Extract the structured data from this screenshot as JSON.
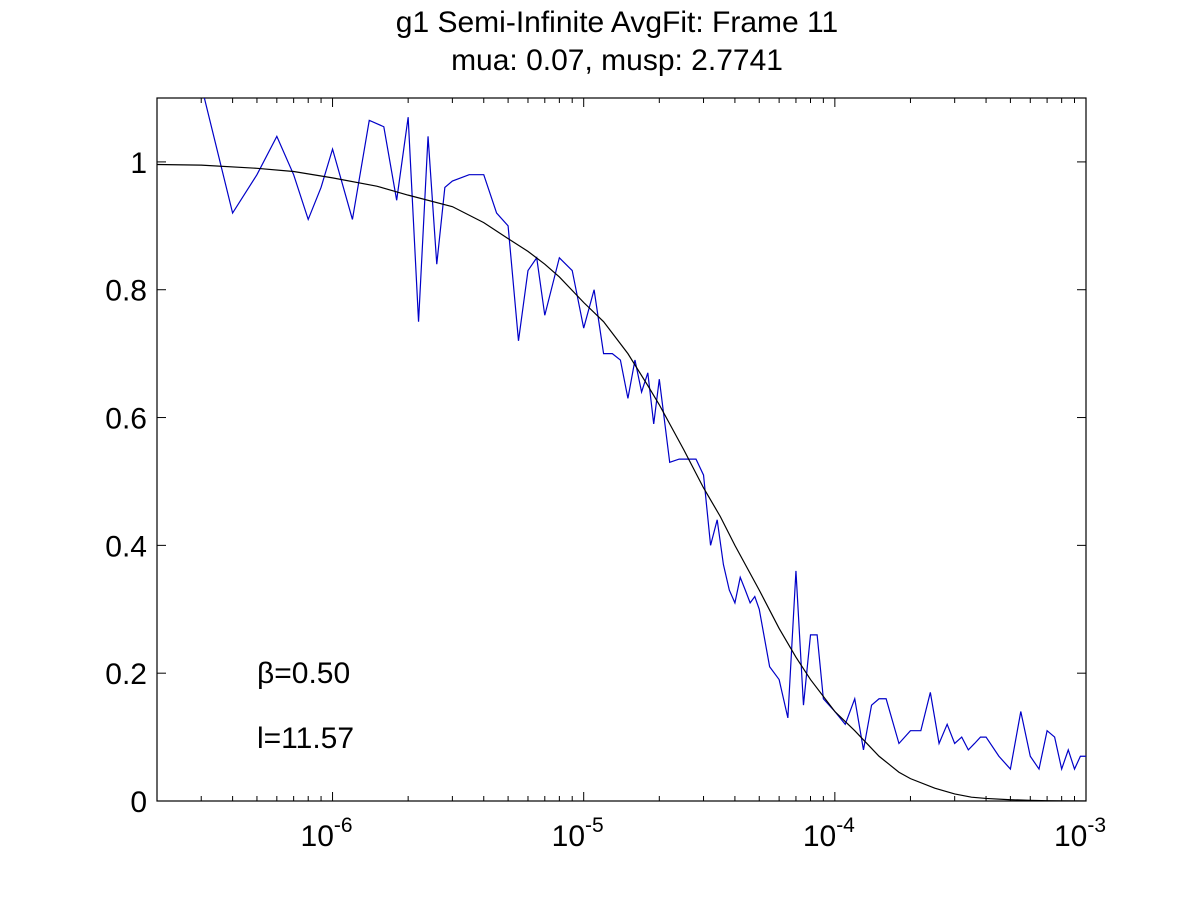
{
  "chart_data": {
    "type": "line",
    "title": "g1 Semi-Infinite AvgFit: Frame 11",
    "subtitle": "mua: 0.07, musp: 2.7741",
    "xlabel": "",
    "ylabel": "",
    "x_scale": "log",
    "xlim": [
      2e-07,
      0.001
    ],
    "ylim": [
      0,
      1.1
    ],
    "grid": false,
    "y_ticks": [
      {
        "value": 0,
        "label": "0"
      },
      {
        "value": 0.2,
        "label": "0.2"
      },
      {
        "value": 0.4,
        "label": "0.4"
      },
      {
        "value": 0.6,
        "label": "0.6"
      },
      {
        "value": 0.8,
        "label": "0.8"
      },
      {
        "value": 1,
        "label": "1"
      }
    ],
    "x_ticks": [
      {
        "value": 1e-06,
        "base": "10",
        "exp": "-6"
      },
      {
        "value": 1e-05,
        "base": "10",
        "exp": "-5"
      },
      {
        "value": 0.0001,
        "base": "10",
        "exp": "-4"
      },
      {
        "value": 0.001,
        "base": "10",
        "exp": "-3"
      }
    ],
    "annotations": [
      {
        "id": "beta",
        "text": "β=0.50"
      },
      {
        "id": "l",
        "text": "l=11.57"
      }
    ],
    "series": [
      {
        "color": "#0000c8",
        "x": [
          3e-07,
          4e-07,
          5e-07,
          6e-07,
          7e-07,
          8e-07,
          9e-07,
          1e-06,
          1.2e-06,
          1.4e-06,
          1.6e-06,
          1.8e-06,
          2e-06,
          2.2e-06,
          2.4e-06,
          2.6e-06,
          2.8e-06,
          3e-06,
          3.5e-06,
          4e-06,
          4.5e-06,
          5e-06,
          5.5e-06,
          6e-06,
          6.5e-06,
          7e-06,
          8e-06,
          9e-06,
          1e-05,
          1.1e-05,
          1.2e-05,
          1.3e-05,
          1.4e-05,
          1.5e-05,
          1.6e-05,
          1.7e-05,
          1.8e-05,
          1.9e-05,
          2e-05,
          2.2e-05,
          2.4e-05,
          2.6e-05,
          2.8e-05,
          3e-05,
          3.2e-05,
          3.4e-05,
          3.6e-05,
          3.8e-05,
          4e-05,
          4.2e-05,
          4.4e-05,
          4.6e-05,
          4.8e-05,
          5e-05,
          5.5e-05,
          6e-05,
          6.5e-05,
          7e-05,
          7.5e-05,
          8e-05,
          8.5e-05,
          9e-05,
          0.0001,
          0.00011,
          0.00012,
          0.00013,
          0.00014,
          0.00015,
          0.00016,
          0.00018,
          0.0002,
          0.00022,
          0.00024,
          0.00026,
          0.00028,
          0.0003,
          0.00032,
          0.00034,
          0.00036,
          0.00038,
          0.0004,
          0.00045,
          0.0005,
          0.00055,
          0.0006,
          0.00065,
          0.0007,
          0.00075,
          0.0008,
          0.00085,
          0.0009,
          0.00095,
          0.001
        ],
        "y": [
          1.12,
          0.92,
          0.98,
          1.04,
          0.98,
          0.91,
          0.96,
          1.02,
          0.91,
          1.065,
          1.055,
          0.94,
          1.07,
          0.75,
          1.04,
          0.84,
          0.96,
          0.97,
          0.98,
          0.98,
          0.92,
          0.9,
          0.72,
          0.83,
          0.85,
          0.76,
          0.85,
          0.83,
          0.74,
          0.8,
          0.7,
          0.7,
          0.69,
          0.63,
          0.69,
          0.64,
          0.67,
          0.59,
          0.66,
          0.53,
          0.535,
          0.535,
          0.535,
          0.51,
          0.4,
          0.44,
          0.37,
          0.33,
          0.31,
          0.35,
          0.33,
          0.31,
          0.32,
          0.3,
          0.21,
          0.19,
          0.13,
          0.36,
          0.15,
          0.26,
          0.26,
          0.16,
          0.14,
          0.12,
          0.16,
          0.08,
          0.15,
          0.16,
          0.16,
          0.09,
          0.11,
          0.11,
          0.17,
          0.09,
          0.12,
          0.09,
          0.1,
          0.08,
          0.09,
          0.1,
          0.1,
          0.07,
          0.05,
          0.14,
          0.07,
          0.05,
          0.11,
          0.1,
          0.05,
          0.08,
          0.05,
          0.07,
          0.07
        ]
      },
      {
        "color": "#000000",
        "x": [
          2e-07,
          3e-07,
          5e-07,
          7e-07,
          1e-06,
          1.5e-06,
          2e-06,
          3e-06,
          4e-06,
          5e-06,
          6e-06,
          7e-06,
          8e-06,
          1e-05,
          1.2e-05,
          1.5e-05,
          1.8e-05,
          2e-05,
          2.5e-05,
          3e-05,
          3.5e-05,
          4e-05,
          5e-05,
          6e-05,
          7e-05,
          8e-05,
          0.0001,
          0.00012,
          0.00015,
          0.00018,
          0.0002,
          0.00025,
          0.0003,
          0.00035,
          0.0004,
          0.0005,
          0.0006,
          0.0007,
          0.0008,
          0.001
        ],
        "y": [
          0.996,
          0.995,
          0.99,
          0.985,
          0.975,
          0.962,
          0.948,
          0.93,
          0.905,
          0.88,
          0.86,
          0.84,
          0.82,
          0.78,
          0.75,
          0.7,
          0.65,
          0.62,
          0.55,
          0.49,
          0.445,
          0.4,
          0.33,
          0.27,
          0.225,
          0.19,
          0.14,
          0.11,
          0.07,
          0.045,
          0.035,
          0.02,
          0.011,
          0.006,
          0.004,
          0.002,
          0.001,
          0.0005,
          0.0002,
          0.0001
        ]
      }
    ]
  }
}
